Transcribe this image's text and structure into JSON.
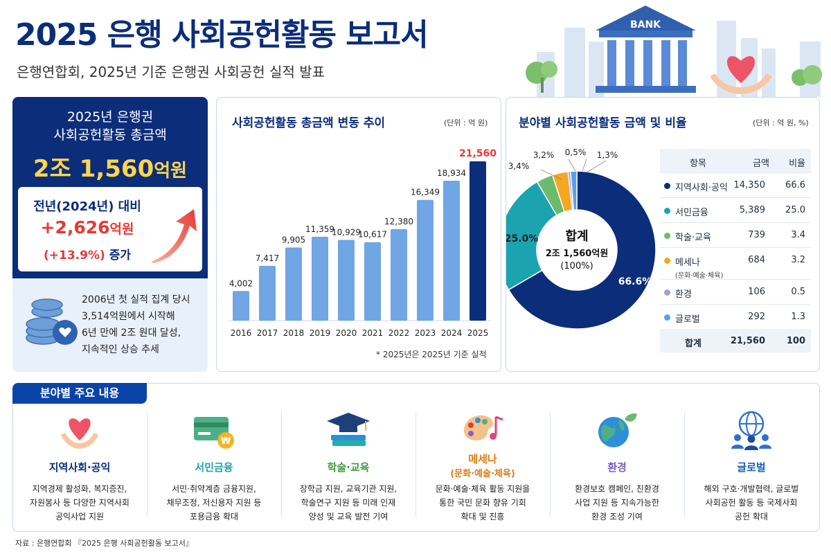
{
  "title": "2025 은행 사회공헌활동 보고서",
  "subtitle": "은행연합회, 2025년 기준 은행권 사회공헌 실적 발표",
  "hero": {
    "bank_sign": "BANK"
  },
  "summary": {
    "label_line1": "2025년 은행권",
    "label_line2": "사회공헌활동 총금액",
    "total_main": "2조 1,560",
    "total_unit": "억원",
    "yoy_label": "전년(2024년) 대비",
    "yoy_amount": "+2,626",
    "yoy_amount_unit": "억원",
    "yoy_rate": "(+13.9%)",
    "yoy_rate_suffix": "증가",
    "history_line1": "2006년 첫 실적 집계 당시",
    "history_line2": "3,514억원에서 시작해",
    "history_line3": "6년 만에 2조 원대 달성,",
    "history_line4": "지속적인 상승 추세"
  },
  "bar_panel": {
    "title": "사회공헌활동 총금액 변동 추이",
    "unit": "(단위 : 억 원)",
    "note": "* 2025년은 2025년 기준 실적"
  },
  "donut_panel": {
    "title": "분야별 사회공헌활동 금액 및 비율",
    "unit": "(단위 : 억 원, %)",
    "center_label": "합계",
    "center_value": "2조 1,560억원",
    "center_pct": "(100%)",
    "table_head": {
      "item": "항목",
      "amount": "금액",
      "ratio": "비율"
    },
    "rows": [
      {
        "name": "지역사회·공익",
        "sub": "",
        "amount": "14,350",
        "ratio": "66.6",
        "color": "#0b2d7a"
      },
      {
        "name": "서민금융",
        "sub": "",
        "amount": "5,389",
        "ratio": "25.0",
        "color": "#1ba3b0"
      },
      {
        "name": "학술·교육",
        "sub": "",
        "amount": "739",
        "ratio": "3.4",
        "color": "#6cbb6c"
      },
      {
        "name": "메세나",
        "sub": "(문화·예술·체육)",
        "amount": "684",
        "ratio": "3.2",
        "color": "#f5a623"
      },
      {
        "name": "환경",
        "sub": "",
        "amount": "106",
        "ratio": "0.5",
        "color": "#a99ae0"
      },
      {
        "name": "글로벌",
        "sub": "",
        "amount": "292",
        "ratio": "1.3",
        "color": "#5aa0e6"
      }
    ],
    "total_row": {
      "name": "합계",
      "amount": "21,560",
      "ratio": "100"
    }
  },
  "chart_data": [
    {
      "type": "bar",
      "title": "사회공헌활동 총금액 변동 추이",
      "categories": [
        "2016",
        "2017",
        "2018",
        "2019",
        "2020",
        "2021",
        "2022",
        "2023",
        "2024",
        "2025"
      ],
      "values": [
        4002,
        7417,
        9905,
        11359,
        10929,
        10617,
        12380,
        16349,
        18934,
        21560
      ],
      "value_labels": [
        "4,002",
        "7,417",
        "9,905",
        "11,359",
        "10,929",
        "10,617",
        "12,380",
        "16,349",
        "18,934",
        "21,560"
      ],
      "highlight_index": 9,
      "ylim": [
        0,
        21560
      ],
      "grid": false,
      "colors": {
        "bar": "#6fa6e3",
        "highlight": "#0b2d7a",
        "highlight_label": "#e53935"
      }
    },
    {
      "type": "pie",
      "title": "분야별 사회공헌활동 금액 및 비율",
      "categories": [
        "지역사회·공익",
        "서민금융",
        "학술·교육",
        "메세나",
        "환경",
        "글로벌"
      ],
      "values": [
        66.6,
        25.0,
        3.4,
        3.2,
        0.5,
        1.3
      ],
      "slice_labels": [
        "66.6%",
        "25.0%",
        "3,4%",
        "3,2%",
        "0,5%",
        "1,3%"
      ],
      "colors": [
        "#0b2d7a",
        "#1ba3b0",
        "#6cbb6c",
        "#f5a623",
        "#a99ae0",
        "#5aa0e6"
      ],
      "donut": true
    }
  ],
  "fields": {
    "tab": "분야별 주요 내용",
    "items": [
      {
        "icon": "heart-hands-icon",
        "name": "지역사회·공익",
        "name2": "",
        "color": "#0b2d7a",
        "desc1": "지역경제 활성화, 복지증진,",
        "desc2": "자원봉사 등 다양한 지역사회",
        "desc3": "공익사업 지원"
      },
      {
        "icon": "card-icon",
        "name": "서민금융",
        "name2": "",
        "color": "#1ba3b0",
        "desc1": "서민·취약계층 금융지원,",
        "desc2": "채무조정, 저신용자 지원 등",
        "desc3": "포용금융 확대"
      },
      {
        "icon": "graduation-icon",
        "name": "학술·교육",
        "name2": "",
        "color": "#3e9b3e",
        "desc1": "장학금 지원, 교육기관 지원,",
        "desc2": "학술연구 지원 등 미래 인재",
        "desc3": "양성 및 교육 발전 기여"
      },
      {
        "icon": "palette-icon",
        "name": "메세나",
        "name2": "(문화·예술·체육)",
        "color": "#e07a10",
        "desc1": "문화·예술·체육 활동 지원을",
        "desc2": "통한 국민 문화 향유 기회",
        "desc3": "확대 및 진흥"
      },
      {
        "icon": "globe-leaf-icon",
        "name": "환경",
        "name2": "",
        "color": "#7a5cc8",
        "desc1": "환경보호 캠페인, 친환경",
        "desc2": "사업 지원 등 지속가능한",
        "desc3": "환경 조성 기여"
      },
      {
        "icon": "global-people-icon",
        "name": "글로벌",
        "name2": "",
        "color": "#1a5fb4",
        "desc1": "해외 구호·개발협력, 글로벌",
        "desc2": "사회공헌 활동 등 국제사회",
        "desc3": "공헌 확대"
      }
    ]
  },
  "source": "자료 : 은행연합회 『2025 은행 사회공헌활동 보고서』"
}
